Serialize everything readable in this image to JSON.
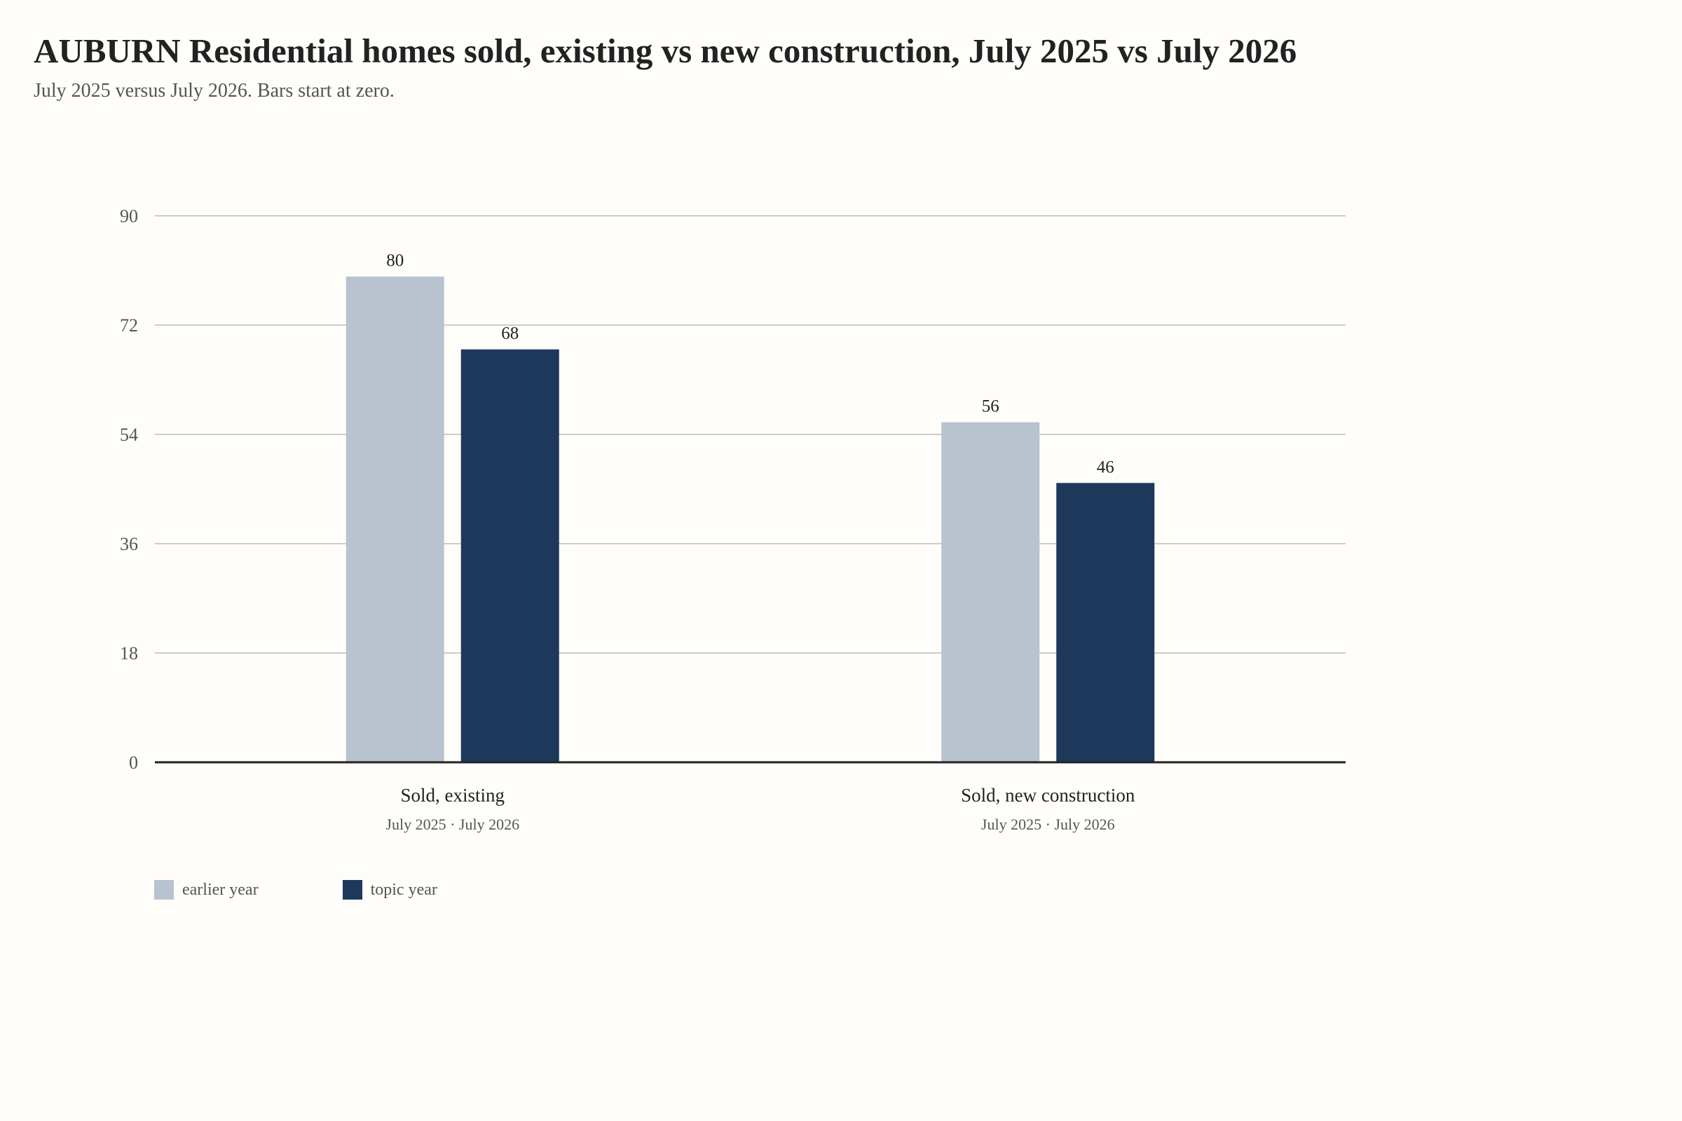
{
  "chart_data": {
    "type": "bar",
    "title": "AUBURN Residential homes sold, existing vs new construction, July 2025 vs July 2026",
    "subtitle": "July 2025 versus July 2026. Bars start at zero.",
    "categories": [
      "Sold, existing",
      "Sold, new construction"
    ],
    "category_sublabels": [
      "July 2025 · July 2026",
      "July 2025 · July 2026"
    ],
    "series": [
      {
        "name": "earlier year",
        "color": "#b8c3cf",
        "values": [
          80,
          56
        ]
      },
      {
        "name": "topic year",
        "color": "#1e385c",
        "values": [
          68,
          46
        ]
      }
    ],
    "ylim": [
      0,
      90
    ],
    "yticks": [
      0,
      18,
      36,
      54,
      72,
      90
    ],
    "grid": true,
    "legend_position": "bottom-left",
    "xlabel": "",
    "ylabel": ""
  }
}
